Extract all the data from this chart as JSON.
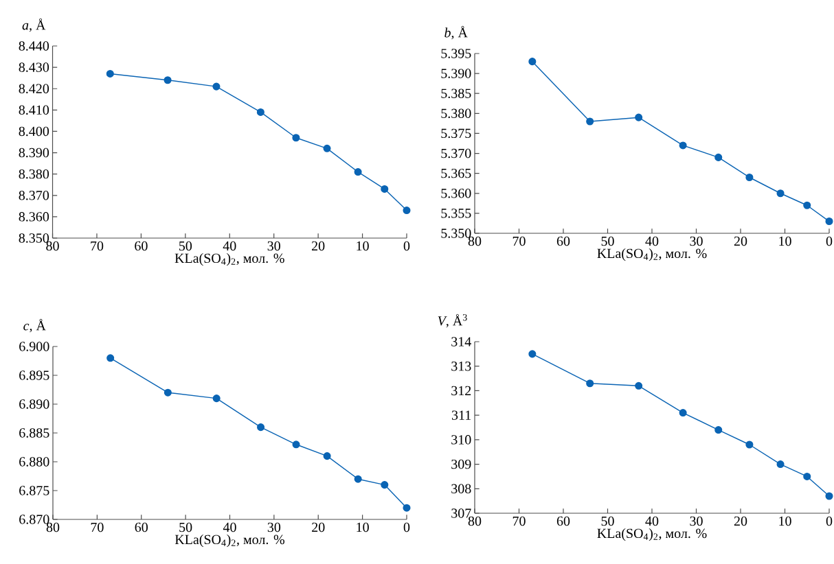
{
  "chart_data": [
    {
      "type": "line",
      "ylabel": "*a*, Å",
      "xlabel": "KLa(SO$_{4}$)$_{2}$, мол. %",
      "x": [
        67,
        54,
        43,
        33,
        25,
        18,
        11,
        5,
        0
      ],
      "values": [
        8.427,
        8.424,
        8.421,
        8.409,
        8.397,
        8.392,
        8.381,
        8.373,
        8.363
      ],
      "color": "#0a64b4",
      "marker": "circle",
      "line_style": "solid",
      "xlim": [
        80,
        0
      ],
      "xticks": [
        80,
        70,
        60,
        50,
        40,
        30,
        20,
        10,
        0
      ],
      "ylim": [
        8.35,
        8.44
      ],
      "yticks": [
        {
          "value": 8.35,
          "label": "8.350"
        },
        {
          "value": 8.36,
          "label": "8.360"
        },
        {
          "value": 8.37,
          "label": "8.370"
        },
        {
          "value": 8.38,
          "label": "8.380"
        },
        {
          "value": 8.39,
          "label": "8.390"
        },
        {
          "value": 8.4,
          "label": "8.400"
        },
        {
          "value": 8.41,
          "label": "8.410"
        },
        {
          "value": 8.42,
          "label": "8.420"
        },
        {
          "value": 8.43,
          "label": "8.430"
        },
        {
          "value": 8.44,
          "label": "8.440"
        }
      ]
    },
    {
      "type": "line",
      "ylabel": "*b*, Å",
      "xlabel": "KLa(SO$_{4}$)$_{2}$, мол. %",
      "x": [
        67,
        54,
        43,
        33,
        25,
        18,
        11,
        5,
        0
      ],
      "values": [
        5.393,
        5.378,
        5.379,
        5.372,
        5.369,
        5.364,
        5.36,
        5.357,
        5.353
      ],
      "color": "#0a64b4",
      "marker": "circle",
      "line_style": "solid",
      "xlim": [
        80,
        0
      ],
      "xticks": [
        80,
        70,
        60,
        50,
        40,
        30,
        20,
        10,
        0
      ],
      "ylim": [
        5.35,
        5.395
      ],
      "yticks": [
        {
          "value": 5.35,
          "label": "5.350"
        },
        5.355,
        {
          "value": 5.36,
          "label": "5.360"
        },
        5.365,
        {
          "value": 5.37,
          "label": "5.370"
        },
        5.375,
        {
          "value": 5.38,
          "label": "5.380"
        },
        5.385,
        {
          "value": 5.39,
          "label": "5.390"
        },
        5.395
      ]
    },
    {
      "type": "line",
      "ylabel": "*c*, Å",
      "xlabel": "KLa(SO$_{4}$)$_{2}$, мол. %",
      "x": [
        67,
        54,
        43,
        33,
        25,
        18,
        11,
        5,
        0
      ],
      "values": [
        6.898,
        6.892,
        6.891,
        6.886,
        6.883,
        6.881,
        6.877,
        6.876,
        6.872
      ],
      "color": "#0a64b4",
      "marker": "circle",
      "line_style": "solid",
      "xlim": [
        80,
        0
      ],
      "xticks": [
        80,
        70,
        60,
        50,
        40,
        30,
        20,
        10,
        0
      ],
      "ylim": [
        6.87,
        6.9
      ],
      "yticks": [
        {
          "value": 6.87,
          "label": "6.870"
        },
        6.875,
        {
          "value": 6.88,
          "label": "6.880"
        },
        6.885,
        {
          "value": 6.89,
          "label": "6.890"
        },
        6.895,
        {
          "value": 6.9,
          "label": "6.900"
        }
      ]
    },
    {
      "type": "line",
      "ylabel": "*V*, Å$^{3}$",
      "xlabel": "KLa(SO$_{4}$)$_{2}$, мол. %",
      "x": [
        67,
        54,
        43,
        33,
        25,
        18,
        11,
        5,
        0
      ],
      "values": [
        313.5,
        312.3,
        312.2,
        311.1,
        310.4,
        309.8,
        309.0,
        308.5,
        307.7
      ],
      "color": "#0a64b4",
      "marker": "circle",
      "line_style": "solid",
      "xlim": [
        80,
        0
      ],
      "xticks": [
        80,
        70,
        60,
        50,
        40,
        30,
        20,
        10,
        0
      ],
      "ylim": [
        307,
        314
      ],
      "yticks": [
        307,
        308,
        309,
        310,
        311,
        312,
        313,
        314
      ]
    }
  ]
}
